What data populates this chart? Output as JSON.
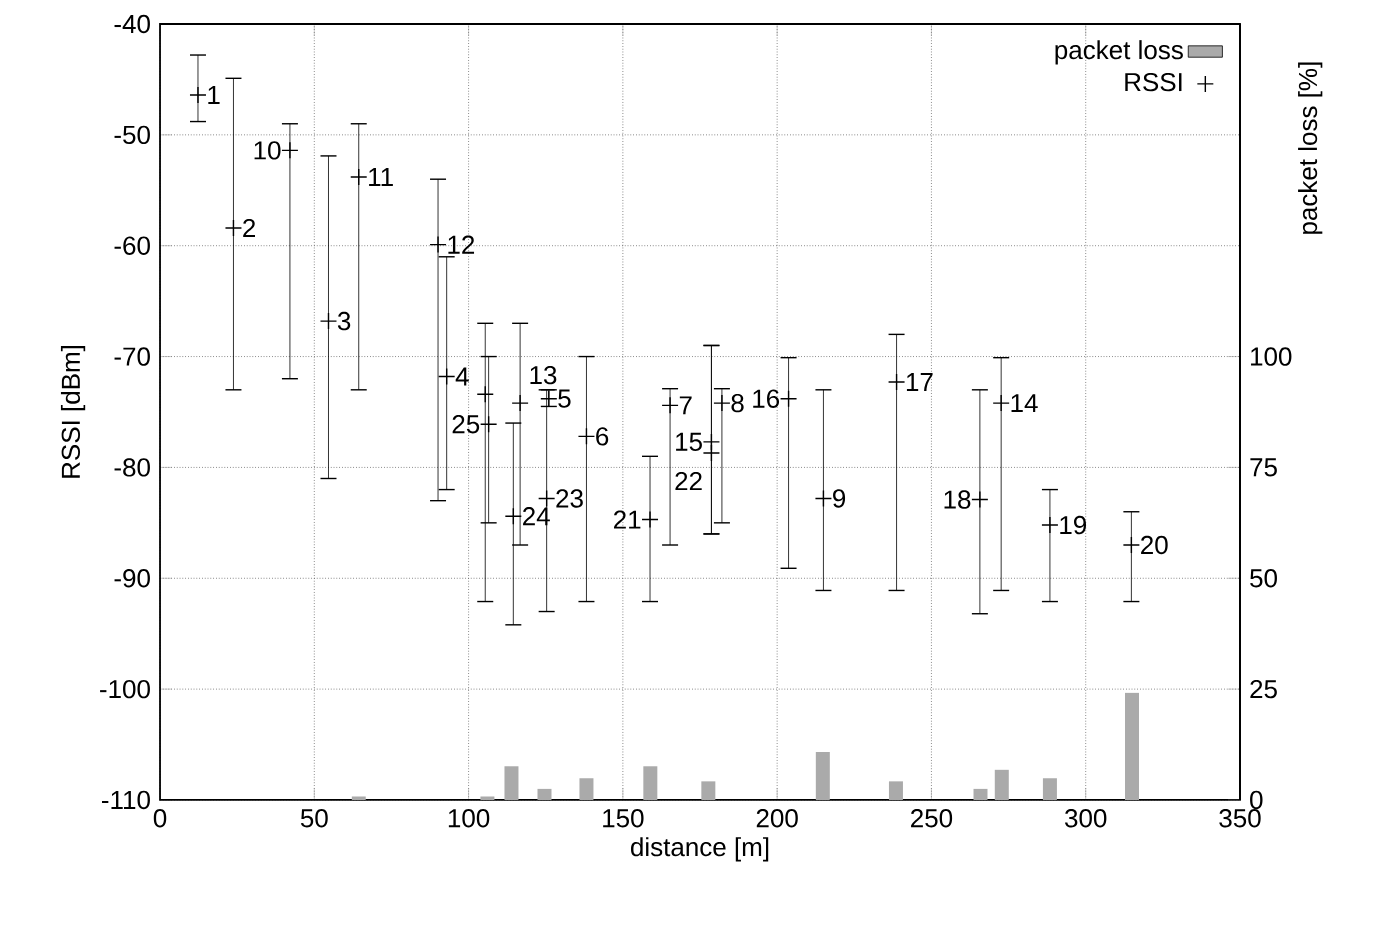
{
  "chart_data": {
    "type": "scatter",
    "xlabel": "distance [m]",
    "ylabel": "RSSI [dBm]",
    "y2label": "packet loss [%]",
    "xlim": [
      0,
      350
    ],
    "xticks": [
      0,
      50,
      100,
      150,
      200,
      250,
      300,
      350
    ],
    "ylim": [
      -110,
      -40
    ],
    "yticks": [
      -110,
      -100,
      -90,
      -80,
      -70,
      -60,
      -50,
      -40
    ],
    "y2lim": [
      0,
      175
    ],
    "y2ticks": [
      0,
      25,
      50,
      75,
      100
    ],
    "grid": true,
    "legend": "top right",
    "marker": "cross",
    "series": [
      {
        "name": "packet loss",
        "type": "bar",
        "axis": "y2",
        "color": "#aaaaaa",
        "x": [
          64.4,
          106.1,
          113.9,
          124.6,
          138.2,
          158.9,
          177.7,
          214.8,
          238.5,
          265.9,
          272.8,
          288.4,
          315
        ],
        "values": [
          0.8,
          0.8,
          7.6,
          2.5,
          4.9,
          7.6,
          4.2,
          10.8,
          4.2,
          2.5,
          6.8,
          4.9,
          24.2
        ]
      },
      {
        "name": "RSSI",
        "color": "#000000",
        "x": [
          12.3,
          23.8,
          42.1,
          54.6,
          64.4,
          90.1,
          92.9,
          105.4,
          106.5,
          114.5,
          116.7,
          125.3,
          126.0,
          138.2,
          158.8,
          165.3,
          178.7,
          178.7,
          182.1,
          203.7,
          215.0,
          238.7,
          265.7,
          272.6,
          288.4,
          314.8
        ],
        "values": [
          -46.4,
          -58.4,
          -51.4,
          -66.8,
          -53.8,
          -59.9,
          -71.8,
          -73.4,
          -76.1,
          -84.4,
          -74.2,
          -82.8,
          -73.8,
          -77.2,
          -84.7,
          -74.4,
          -77.7,
          -78.7,
          -74.2,
          -73.8,
          -82.8,
          -72.3,
          -82.9,
          -74.2,
          -85.2,
          -87.0
        ],
        "errors": [
          [
            -48.8,
            -42.8
          ],
          [
            -73.0,
            -44.9
          ],
          [
            -72.0,
            -49.0
          ],
          [
            -81.0,
            -51.9
          ],
          [
            -73.0,
            -49.0
          ],
          [
            -83.0,
            -54.0
          ],
          [
            -82.0,
            -61.0
          ],
          [
            -92.1,
            -67.0
          ],
          [
            -85.0,
            -70.0
          ],
          [
            -94.2,
            -76.0
          ],
          [
            -87.0,
            -67.0
          ],
          [
            -93.0,
            -73.0
          ],
          [
            -74.5,
            -73.0
          ],
          [
            -92.1,
            -70.0
          ],
          [
            -92.1,
            -79.0
          ],
          [
            -87.0,
            -72.9
          ],
          [
            -86.0,
            -69.0
          ],
          [
            -86.0,
            -69.0
          ],
          [
            -85.0,
            -72.9
          ],
          [
            -89.1,
            -70.1
          ],
          [
            -91.1,
            -73.0
          ],
          [
            -91.1,
            -68.0
          ],
          [
            -93.2,
            -73.0
          ],
          [
            -91.1,
            -70.1
          ],
          [
            -92.1,
            -82.0
          ],
          [
            -92.1,
            -84.0
          ]
        ]
      }
    ],
    "annotations": [
      {
        "text": "1",
        "x": 12.3,
        "y": -46.4
      },
      {
        "text": "2",
        "x": 23.8,
        "y": -58.4
      },
      {
        "text": "3",
        "x": 54.6,
        "y": -66.8
      },
      {
        "text": "4",
        "x": 92.9,
        "y": -71.8
      },
      {
        "text": "5",
        "x": 126.0,
        "y": -73.8
      },
      {
        "text": "6",
        "x": 138.2,
        "y": -77.2
      },
      {
        "text": "7",
        "x": 165.3,
        "y": -74.4
      },
      {
        "text": "8",
        "x": 182.1,
        "y": -74.2
      },
      {
        "text": "9",
        "x": 215.0,
        "y": -82.8
      },
      {
        "text": "10",
        "x": 42.1,
        "y": -51.4
      },
      {
        "text": "11",
        "x": 64.4,
        "y": -53.8
      },
      {
        "text": "12",
        "x": 90.1,
        "y": -59.9
      },
      {
        "text": "13",
        "x": 116.7,
        "y": -74.2
      },
      {
        "text": "14",
        "x": 272.6,
        "y": -74.2
      },
      {
        "text": "15",
        "x": 178.7,
        "y": -77.7
      },
      {
        "text": "16",
        "x": 203.7,
        "y": -73.8
      },
      {
        "text": "17",
        "x": 238.7,
        "y": -72.3
      },
      {
        "text": "18",
        "x": 265.7,
        "y": -82.9
      },
      {
        "text": "19",
        "x": 288.4,
        "y": -85.2
      },
      {
        "text": "20",
        "x": 314.8,
        "y": -87.0
      },
      {
        "text": "21",
        "x": 158.8,
        "y": -84.7
      },
      {
        "text": "22",
        "x": 178.7,
        "y": -78.7
      },
      {
        "text": "23",
        "x": 125.3,
        "y": -82.8
      },
      {
        "text": "24",
        "x": 114.5,
        "y": -84.4
      },
      {
        "text": "25",
        "x": 106.5,
        "y": -76.1
      }
    ]
  }
}
